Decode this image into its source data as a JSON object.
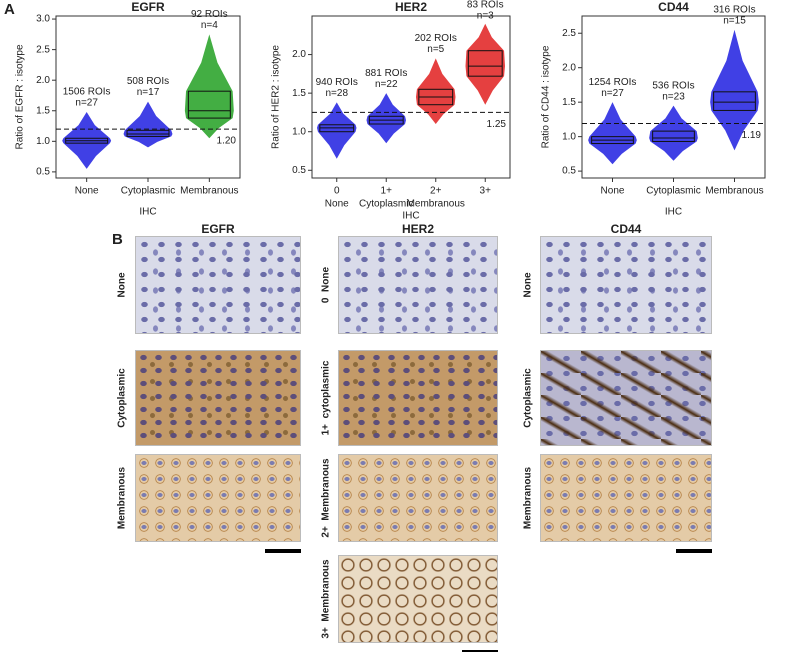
{
  "panel_labels": [
    "A",
    "B"
  ],
  "chart_data": [
    {
      "type": "box",
      "title": "EGFR",
      "y_label": "Ratio of EGFR : isotype",
      "x_label": "IHC",
      "categories": [
        "None",
        "Cytoplasmic",
        "Membranous"
      ],
      "colors": [
        "#1f1fe0",
        "#1f1fe0",
        "#22a022"
      ],
      "rois_labels": [
        "1506 ROIs",
        "508 ROIs",
        "92 ROIs"
      ],
      "n_labels": [
        "n=27",
        "n=17",
        "n=4"
      ],
      "min": [
        0.55,
        0.9,
        1.05
      ],
      "q1": [
        0.97,
        1.08,
        1.38
      ],
      "median": [
        1.01,
        1.12,
        1.5
      ],
      "q3": [
        1.05,
        1.18,
        1.82
      ],
      "max": [
        1.48,
        1.65,
        2.75
      ],
      "threshold": {
        "value": 1.2,
        "label": "1.20"
      },
      "ylim": [
        0.4,
        3.05
      ],
      "yticks": [
        0.5,
        {
          "value": 1,
          "label": "1.0"
        },
        1.5,
        {
          "value": 2,
          "label": "2.0"
        },
        2.5,
        {
          "value": 3,
          "label": "3.0"
        }
      ]
    },
    {
      "type": "box",
      "title": "HER2",
      "y_label": "Ratio of HER2 : isotype",
      "x_label": "IHC",
      "categories": [
        "0",
        "1+",
        "2+",
        "3+"
      ],
      "subcategories": [
        "None",
        "Cytoplasmic",
        "Membranous",
        null
      ],
      "colors": [
        "#1f1fe0",
        "#1f1fe0",
        "#e01f1f",
        "#e01f1f"
      ],
      "rois_labels": [
        "940 ROIs",
        "881 ROIs",
        "202 ROIs",
        "83 ROIs"
      ],
      "n_labels": [
        "n=28",
        "n=22",
        "n=5",
        "n=3"
      ],
      "min": [
        0.65,
        0.85,
        1.1,
        1.35
      ],
      "q1": [
        1.0,
        1.1,
        1.35,
        1.72
      ],
      "median": [
        1.05,
        1.15,
        1.45,
        1.85
      ],
      "q3": [
        1.09,
        1.2,
        1.55,
        2.05
      ],
      "max": [
        1.38,
        1.5,
        1.95,
        2.4
      ],
      "threshold": {
        "value": 1.25,
        "label": "1.25"
      },
      "ylim": [
        0.4,
        2.5
      ],
      "yticks": [
        0.5,
        {
          "value": 1,
          "label": "1.0"
        },
        1.5,
        {
          "value": 2,
          "label": "2.0"
        }
      ]
    },
    {
      "type": "box",
      "title": "CD44",
      "y_label": "Ratio of CD44 : isotype",
      "x_label": "IHC",
      "categories": [
        "None",
        "Cytoplasmic",
        "Membranous"
      ],
      "colors": [
        "#1f1fe0",
        "#1f1fe0",
        "#1f1fe0"
      ],
      "rois_labels": [
        "1254 ROIs",
        "536 ROIs",
        "316 ROIs"
      ],
      "n_labels": [
        "n=27",
        "n=23",
        "n=15"
      ],
      "min": [
        0.6,
        0.65,
        0.8
      ],
      "q1": [
        0.9,
        0.93,
        1.38
      ],
      "median": [
        0.95,
        0.98,
        1.5
      ],
      "q3": [
        1.0,
        1.08,
        1.65
      ],
      "max": [
        1.5,
        1.45,
        2.55
      ],
      "threshold": {
        "value": 1.19,
        "label": "1.19"
      },
      "ylim": [
        0.4,
        2.75
      ],
      "yticks": [
        0.5,
        {
          "value": 1,
          "label": "1.0"
        },
        1.5,
        {
          "value": 2,
          "label": "2.0"
        },
        2.5
      ]
    }
  ],
  "panel_b": {
    "columns": [
      {
        "title": "EGFR",
        "rows": [
          "None",
          "Cytoplasmic",
          "Membranous"
        ]
      },
      {
        "title": "HER2",
        "rows": [
          "0  None",
          "1+  cytoplasmic",
          "2+  Membranous",
          "3+  Membranous"
        ]
      },
      {
        "title": "CD44",
        "rows": [
          "None",
          "Cytoplasmic",
          "Membranous"
        ]
      }
    ]
  }
}
